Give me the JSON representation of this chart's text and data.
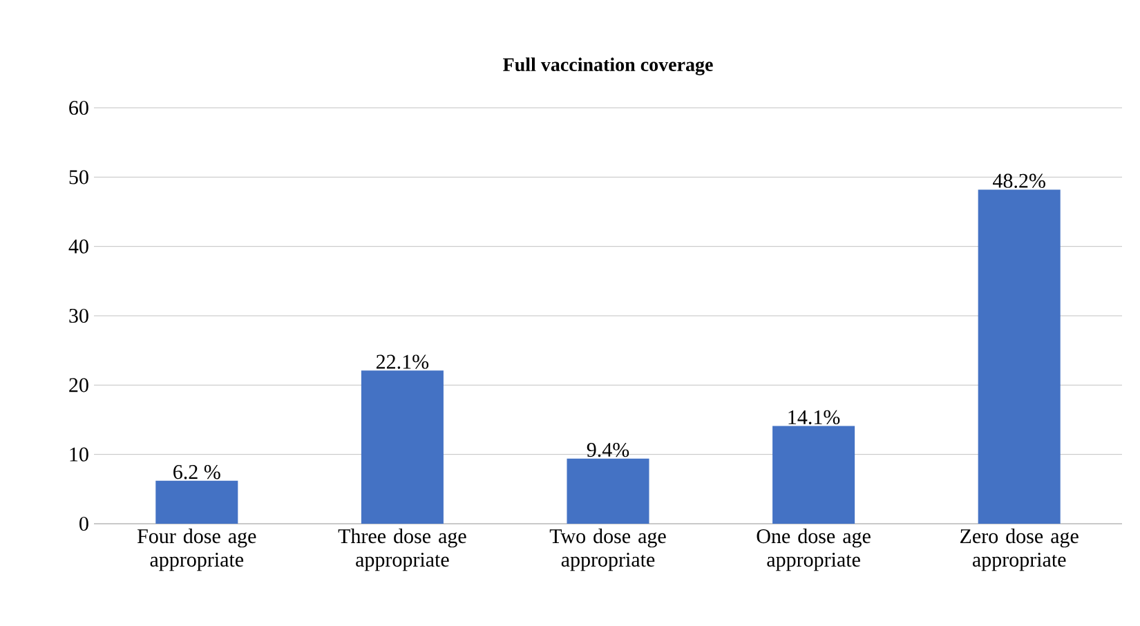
{
  "chart_data": {
    "type": "bar",
    "title": "Full vaccination coverage",
    "categories": [
      "Four dose age appropriate",
      "Three dose age appropriate",
      "Two dose age appropriate",
      "One dose age appropriate",
      "Zero dose age appropriate"
    ],
    "values": [
      6.2,
      22.1,
      9.4,
      14.1,
      48.2
    ],
    "value_labels": [
      "6.2 %",
      "22.1%",
      "9.4%",
      "14.1%",
      "48.2%"
    ],
    "color": "#4472c4",
    "ylim": [
      0,
      60
    ],
    "yticks": [
      0,
      10,
      20,
      30,
      40,
      50,
      60
    ],
    "grid": "y"
  }
}
